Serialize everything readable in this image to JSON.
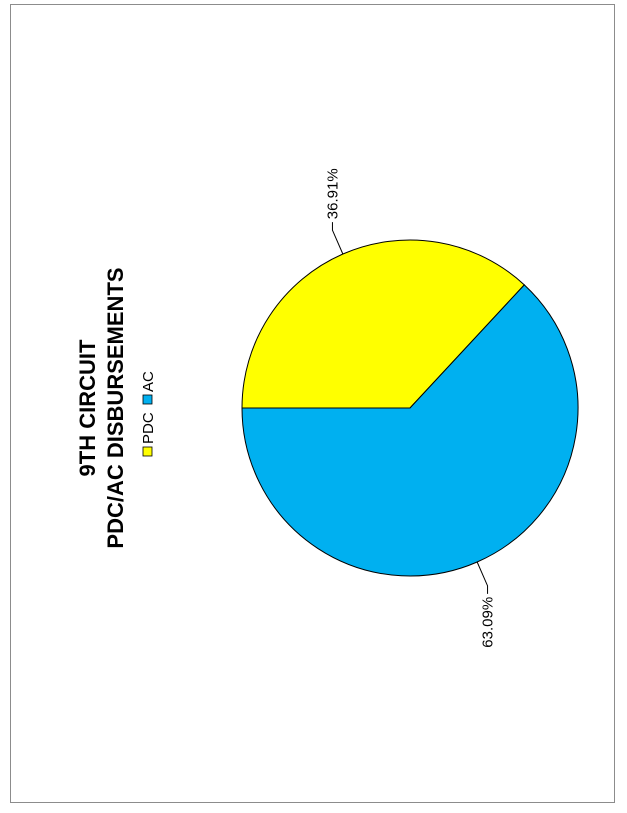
{
  "chart_data": {
    "type": "pie",
    "title": [
      "9TH CIRCUIT",
      "PDC/AC DISBURSEMENTS"
    ],
    "categories": [
      "PDC",
      "AC"
    ],
    "values": [
      36.91,
      63.09
    ],
    "data_labels": [
      "36.91%",
      "63.09%"
    ],
    "colors": [
      "#FFFF00",
      "#00B0F0"
    ],
    "legend_position": "top",
    "orientation": "rotated-90-counterclockwise"
  }
}
